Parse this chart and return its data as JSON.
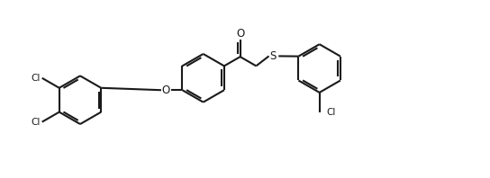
{
  "bg_color": "#ffffff",
  "line_color": "#1a1a1a",
  "line_width": 1.5,
  "fig_width": 5.44,
  "fig_height": 1.98,
  "dpi": 100,
  "xlim": [
    0,
    11
  ],
  "ylim": [
    0,
    4.0
  ],
  "r": 0.55
}
